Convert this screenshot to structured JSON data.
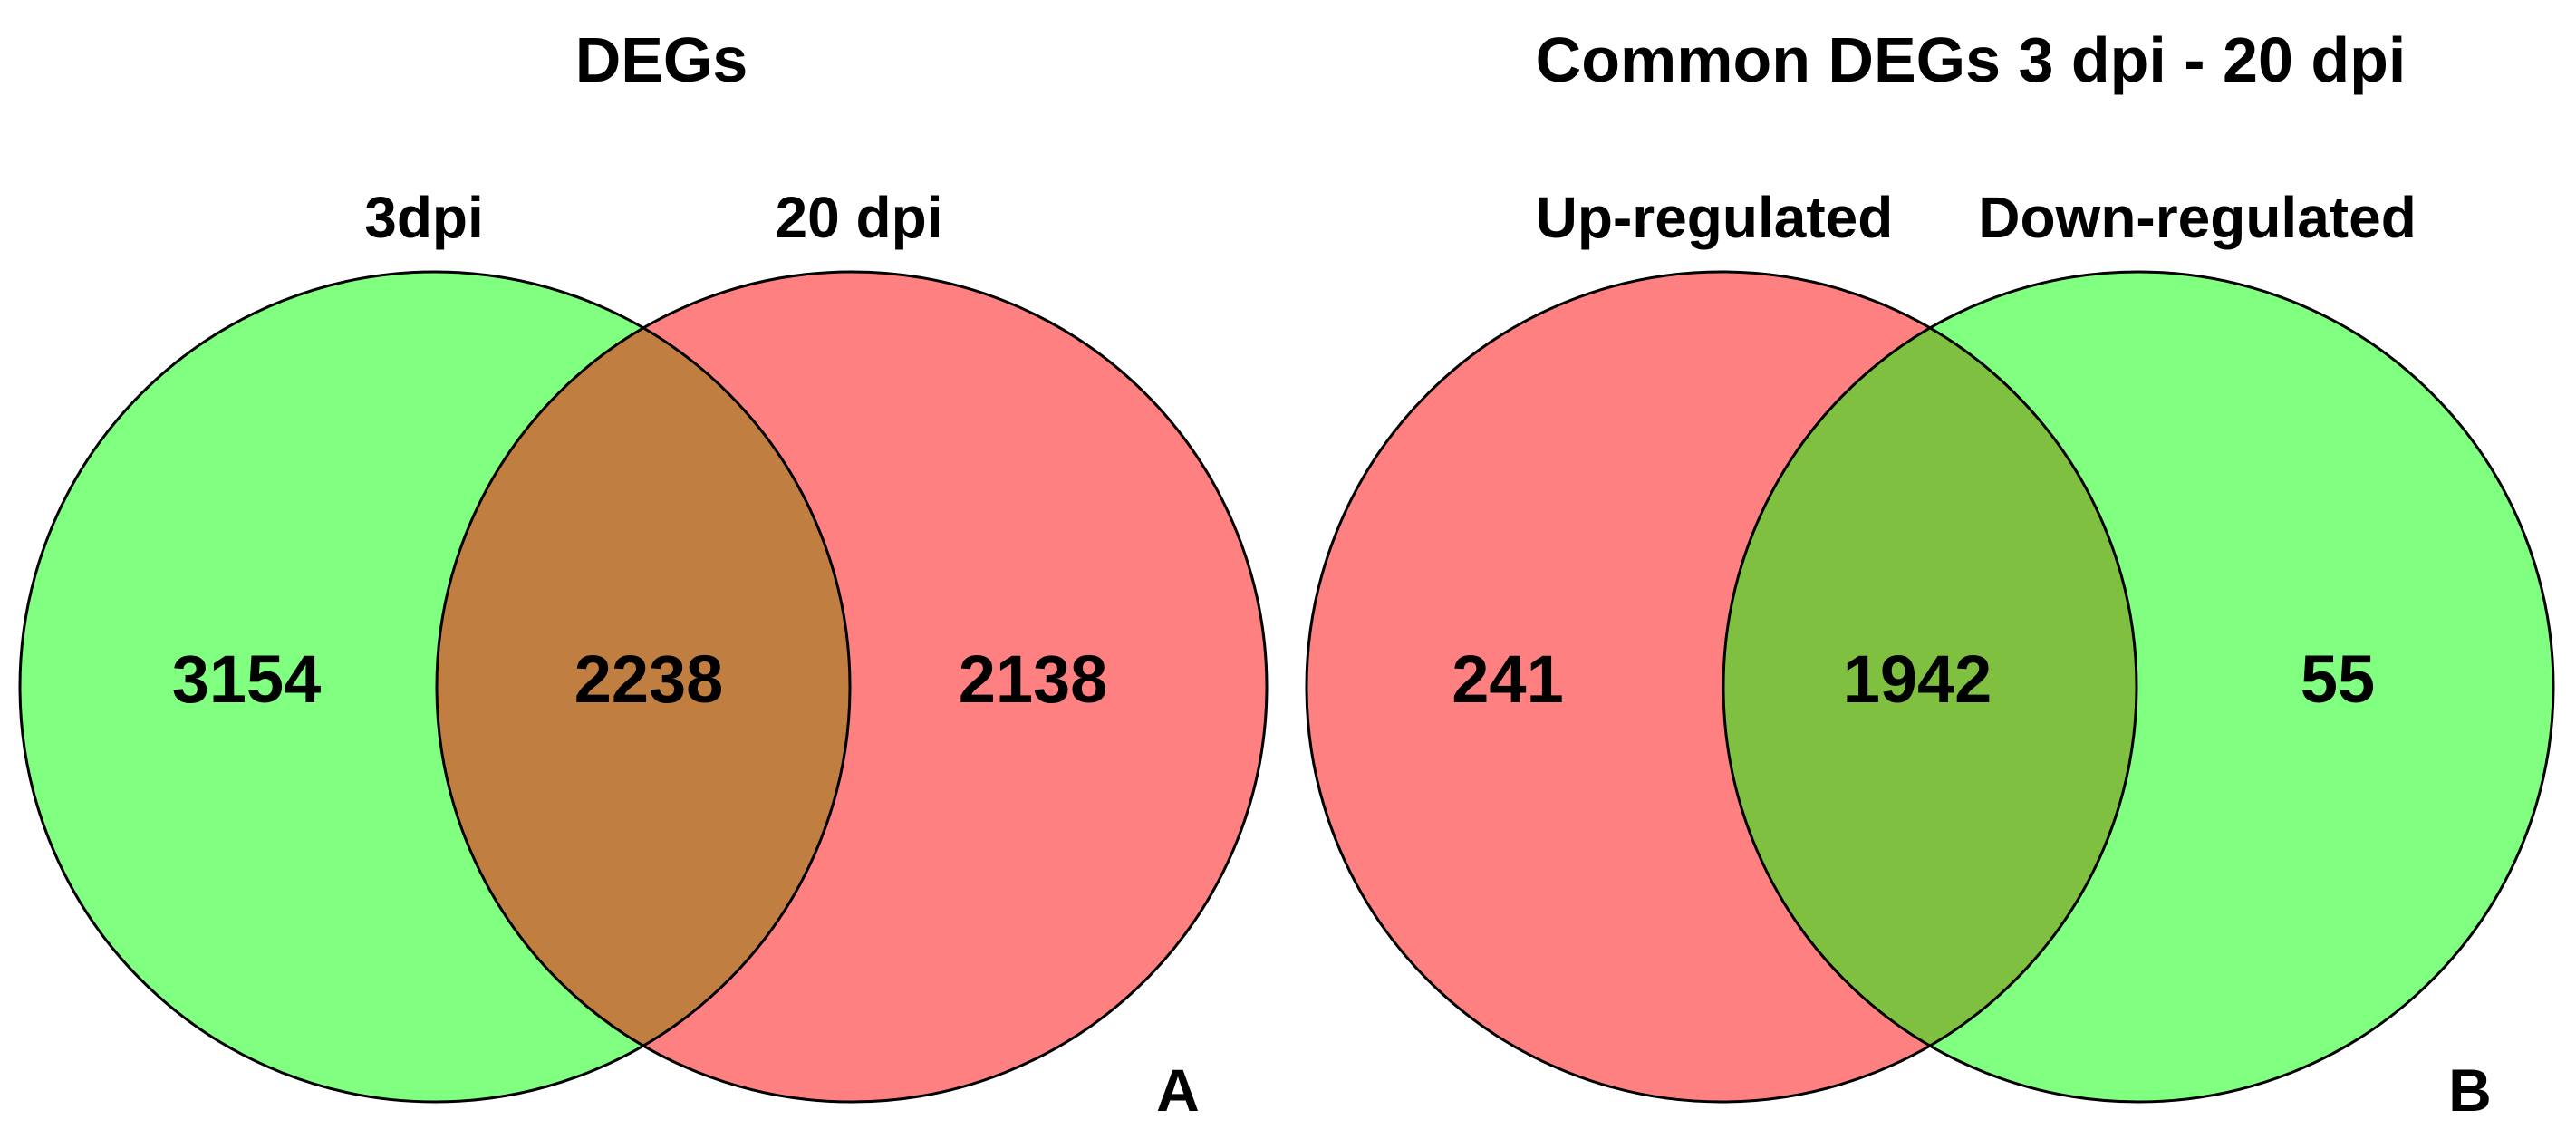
{
  "panels": [
    {
      "letter": "A",
      "title": "DEGs",
      "left_set": {
        "label": "3dpi",
        "count": "3154",
        "color": "#80ff80"
      },
      "right_set": {
        "label": "20 dpi",
        "count": "2138",
        "color": "#ff8080"
      },
      "overlap": {
        "count": "2238",
        "color": "#c07f40"
      }
    },
    {
      "letter": "B",
      "title": "Common DEGs 3 dpi - 20 dpi",
      "left_set": {
        "label": "Up-regulated",
        "count": "241",
        "color": "#ff8080"
      },
      "right_set": {
        "label": "Down-regulated",
        "count": "55",
        "color": "#80ff80"
      },
      "overlap": {
        "count": "1942",
        "color": "#80c040"
      }
    }
  ]
}
